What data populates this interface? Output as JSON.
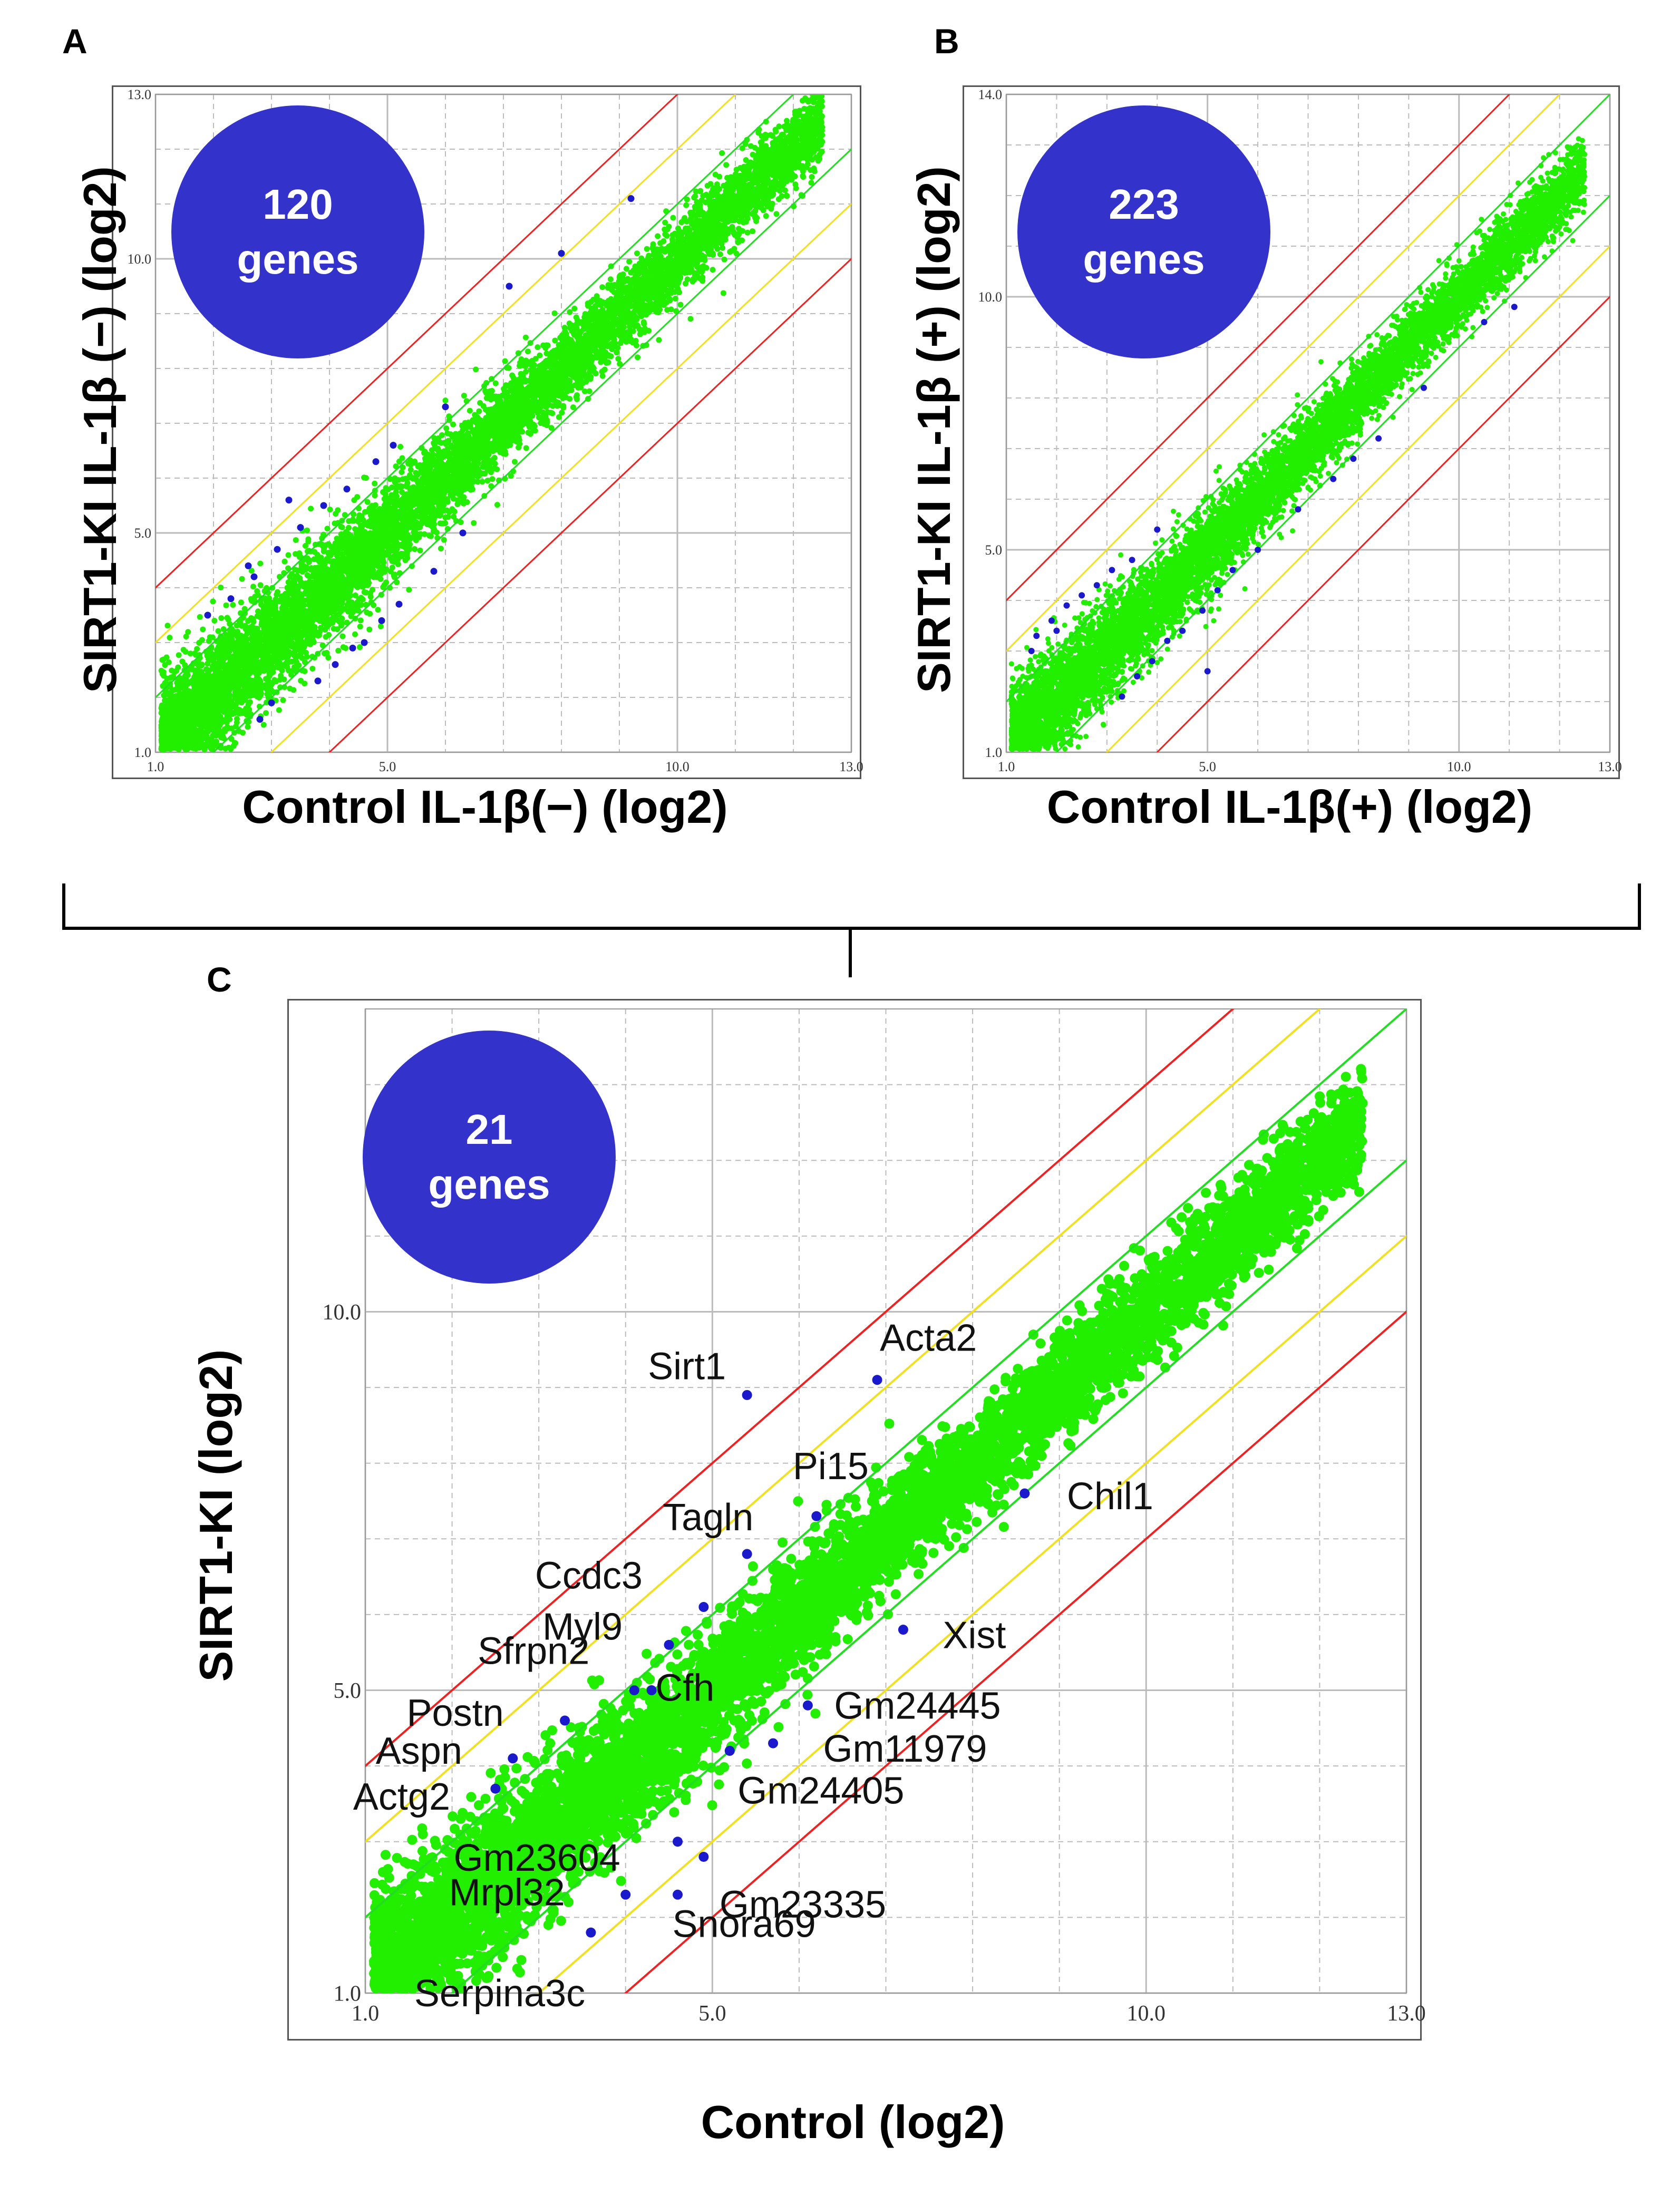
{
  "figure": {
    "panelA": {
      "letter": "A",
      "badge_count": "120",
      "badge_unit": "genes",
      "xlabel": "Control IL-1β(−) (log2)",
      "ylabel": "SIRT1-KI IL-1β (−) (log2)"
    },
    "panelB": {
      "letter": "B",
      "badge_count": "223",
      "badge_unit": "genes",
      "xlabel": "Control IL-1β(+) (log2)",
      "ylabel": "SIRT1-KI IL-1β (+) (log2)"
    },
    "panelC": {
      "letter": "C",
      "badge_count": "21",
      "badge_unit": "genes",
      "xlabel": "Control (log2)",
      "ylabel": "SIRT1-KI (log2)"
    }
  },
  "colors": {
    "points": "#22ee00",
    "highlight": "#1a1acc",
    "fc2": "#22dd22",
    "fc4": "#f0e020",
    "fc8": "#ee2222",
    "grid": "#bbbbbb",
    "badge": "#3333cc"
  },
  "chart_data": [
    {
      "id": "A",
      "type": "scatter",
      "title": "",
      "xlabel": "Control IL-1β(−) (log2)",
      "ylabel": "SIRT1-KI IL-1β (−) (log2)",
      "xlim": [
        1.0,
        13.0
      ],
      "ylim": [
        1.0,
        13.0
      ],
      "xticks": [
        "1.0",
        "5.0",
        "10.0",
        "13.0"
      ],
      "yticks": [
        "1.0",
        "5.0",
        "10.0",
        "13.0"
      ],
      "fold_change_lines": [
        2,
        4,
        8
      ],
      "highlighted_gene_count": 120,
      "highlighted_points": [
        [
          5.1,
          6.6
        ],
        [
          4.8,
          6.3
        ],
        [
          4.3,
          5.8
        ],
        [
          3.9,
          5.5
        ],
        [
          3.5,
          5.1
        ],
        [
          3.1,
          4.7
        ],
        [
          2.7,
          4.2
        ],
        [
          2.3,
          3.8
        ],
        [
          1.9,
          3.5
        ],
        [
          6.0,
          7.3
        ],
        [
          7.1,
          9.5
        ],
        [
          8.0,
          10.1
        ],
        [
          9.2,
          11.1
        ],
        [
          3.3,
          5.6
        ],
        [
          2.6,
          4.4
        ],
        [
          4.6,
          3.0
        ],
        [
          5.2,
          3.7
        ],
        [
          5.8,
          4.3
        ],
        [
          3.8,
          2.3
        ],
        [
          4.1,
          2.6
        ],
        [
          6.3,
          5.0
        ],
        [
          4.9,
          3.4
        ],
        [
          2.8,
          1.6
        ],
        [
          3.0,
          1.9
        ],
        [
          4.4,
          2.9
        ]
      ]
    },
    {
      "id": "B",
      "type": "scatter",
      "title": "",
      "xlabel": "Control IL-1β(+) (log2)",
      "ylabel": "SIRT1-KI IL-1β (+) (log2)",
      "xlim": [
        1.0,
        13.0
      ],
      "ylim": [
        1.0,
        14.0
      ],
      "xticks": [
        "1.0",
        "5.0",
        "10.0",
        "13.0"
      ],
      "yticks": [
        "1.0",
        "5.0",
        "10.0",
        "14.0"
      ],
      "fold_change_lines": [
        2,
        4,
        8
      ],
      "highlighted_gene_count": 223,
      "highlighted_points": [
        [
          1.6,
          3.3
        ],
        [
          1.9,
          3.6
        ],
        [
          2.2,
          3.9
        ],
        [
          2.5,
          4.1
        ],
        [
          2.8,
          4.3
        ],
        [
          3.1,
          4.6
        ],
        [
          3.5,
          4.8
        ],
        [
          4.0,
          5.4
        ],
        [
          1.5,
          3.0
        ],
        [
          2.0,
          3.4
        ],
        [
          3.6,
          2.5
        ],
        [
          3.9,
          2.8
        ],
        [
          4.2,
          3.2
        ],
        [
          4.5,
          3.4
        ],
        [
          4.9,
          3.8
        ],
        [
          5.2,
          4.2
        ],
        [
          5.5,
          4.6
        ],
        [
          6.0,
          5.0
        ],
        [
          6.8,
          5.8
        ],
        [
          7.5,
          6.4
        ],
        [
          7.9,
          6.8
        ],
        [
          8.4,
          7.2
        ],
        [
          9.3,
          8.2
        ],
        [
          10.5,
          9.5
        ],
        [
          11.1,
          9.8
        ],
        [
          5.0,
          2.6
        ],
        [
          3.3,
          2.1
        ]
      ]
    },
    {
      "id": "C",
      "type": "scatter",
      "title": "",
      "xlabel": "Control (log2)",
      "ylabel": "SIRT1-KI (log2)",
      "xlim": [
        1.0,
        13.0
      ],
      "ylim": [
        1.0,
        14.0
      ],
      "xticks": [
        "1.0",
        "5.0",
        "10.0",
        "13.0"
      ],
      "yticks": [
        "1.0",
        "5.0",
        "10.0"
      ],
      "fold_change_lines": [
        2,
        4,
        8
      ],
      "highlighted_gene_count": 21,
      "genes": [
        {
          "name": "Acta2",
          "x": 6.9,
          "y": 9.1
        },
        {
          "name": "Sirt1",
          "x": 5.4,
          "y": 8.9
        },
        {
          "name": "Pi15",
          "x": 6.2,
          "y": 7.3
        },
        {
          "name": "Chil1",
          "x": 8.6,
          "y": 7.6
        },
        {
          "name": "Tagln",
          "x": 5.4,
          "y": 6.8
        },
        {
          "name": "Ccdc3",
          "x": 4.9,
          "y": 6.1
        },
        {
          "name": "Myl9",
          "x": 4.5,
          "y": 5.6
        },
        {
          "name": "Xist",
          "x": 7.2,
          "y": 5.8
        },
        {
          "name": "Sfrpn2",
          "x": 4.3,
          "y": 5.0
        },
        {
          "name": "Cfh",
          "x": 4.1,
          "y": 5.0
        },
        {
          "name": "Postn",
          "x": 3.3,
          "y": 4.6
        },
        {
          "name": "Gm24445",
          "x": 6.1,
          "y": 4.8
        },
        {
          "name": "Aspn",
          "x": 2.7,
          "y": 4.1
        },
        {
          "name": "Gm11979",
          "x": 5.7,
          "y": 4.3
        },
        {
          "name": "Gm24405",
          "x": 5.2,
          "y": 4.2
        },
        {
          "name": "Actg2",
          "x": 2.5,
          "y": 3.7
        },
        {
          "name": "Gm23604",
          "x": 4.6,
          "y": 3.0
        },
        {
          "name": "Gm23335",
          "x": 4.9,
          "y": 2.8
        },
        {
          "name": "Mrpl32",
          "x": 4.0,
          "y": 2.3
        },
        {
          "name": "Snora69",
          "x": 4.6,
          "y": 2.3
        },
        {
          "name": "Serpina3c",
          "x": 3.6,
          "y": 1.8
        }
      ]
    }
  ]
}
